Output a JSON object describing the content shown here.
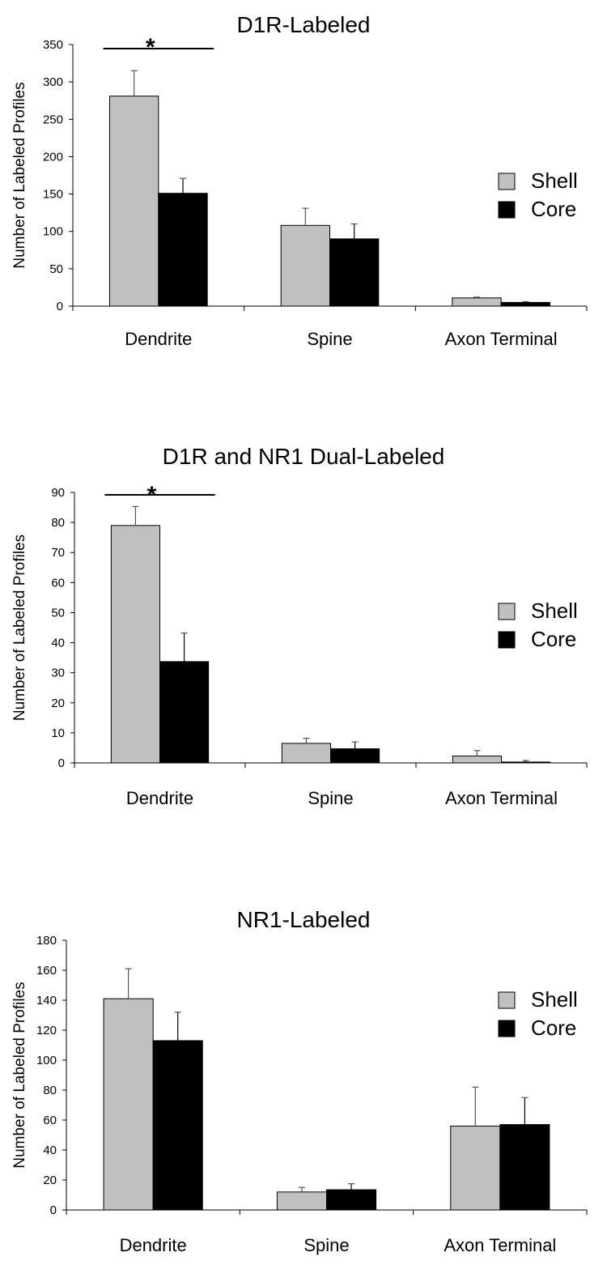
{
  "chart_data": [
    {
      "type": "bar",
      "title": "D1R-Labeled",
      "ylabel": "Number of Labeled Profiles",
      "xlabel": "",
      "categories": [
        "Dendrite",
        "Spine",
        "Axon Terminal"
      ],
      "series": [
        {
          "name": "Shell",
          "color": "#c0c0c0",
          "values": [
            281,
            108,
            11
          ],
          "errors": [
            34,
            23,
            1
          ]
        },
        {
          "name": "Core",
          "color": "#000000",
          "values": [
            151,
            90,
            5
          ],
          "errors": [
            20,
            20,
            1
          ]
        }
      ],
      "ylim": [
        0,
        350
      ],
      "yticks": [
        "0",
        "50",
        "100",
        "150",
        "200",
        "250",
        "300",
        "350"
      ],
      "annotations": [
        {
          "category": "Dendrite",
          "text": "*"
        }
      ],
      "legend": "right",
      "grid": false
    },
    {
      "type": "bar",
      "title": "D1R and NR1 Dual-Labeled",
      "ylabel": "Number of Labeled Profiles",
      "xlabel": "",
      "categories": [
        "Dendrite",
        "Spine",
        "Axon Terminal"
      ],
      "series": [
        {
          "name": "Shell",
          "color": "#c0c0c0",
          "values": [
            79,
            6.5,
            2.3
          ],
          "errors": [
            6.3,
            1.7,
            1.8
          ]
        },
        {
          "name": "Core",
          "color": "#000000",
          "values": [
            33.7,
            4.7,
            0.3
          ],
          "errors": [
            9.5,
            2.3,
            0.5
          ]
        }
      ],
      "ylim": [
        0,
        90
      ],
      "yticks": [
        "0",
        "10",
        "20",
        "30",
        "40",
        "50",
        "60",
        "70",
        "80",
        "90"
      ],
      "annotations": [
        {
          "category": "Dendrite",
          "text": "*"
        }
      ],
      "legend": "right",
      "grid": false
    },
    {
      "type": "bar",
      "title": "NR1-Labeled",
      "ylabel": "Number of Labeled Profiles",
      "xlabel": "",
      "categories": [
        "Dendrite",
        "Spine",
        "Axon Terminal"
      ],
      "series": [
        {
          "name": "Shell",
          "color": "#c0c0c0",
          "values": [
            141,
            12,
            56
          ],
          "errors": [
            20,
            3,
            26
          ]
        },
        {
          "name": "Core",
          "color": "#000000",
          "values": [
            113,
            13.5,
            57
          ],
          "errors": [
            19,
            4,
            18
          ]
        }
      ],
      "ylim": [
        0,
        180
      ],
      "yticks": [
        "0",
        "20",
        "40",
        "60",
        "80",
        "100",
        "120",
        "140",
        "160",
        "180"
      ],
      "annotations": [],
      "legend": "right",
      "grid": false
    }
  ]
}
